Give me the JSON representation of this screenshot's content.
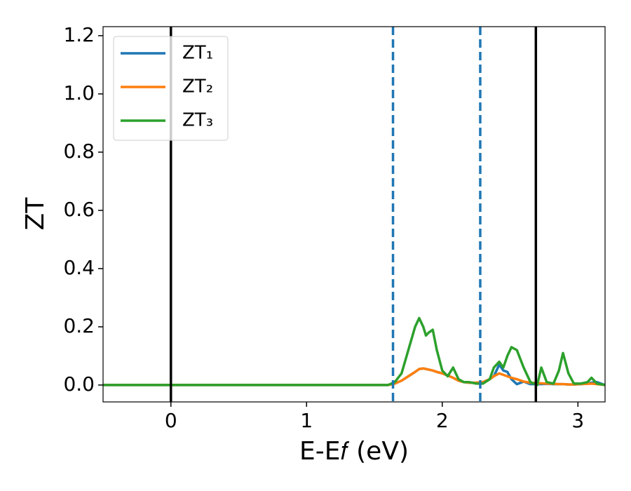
{
  "chart_data": {
    "type": "line",
    "xlabel": "E-E𝑓 (eV)",
    "ylabel": "ZT",
    "xlim": [
      -0.5,
      3.2
    ],
    "ylim": [
      -0.058,
      1.231
    ],
    "xticks": [
      0,
      1,
      2,
      3
    ],
    "yticks": [
      {
        "value": 0,
        "label": "0.0"
      },
      0.2,
      0.4,
      0.6,
      0.8,
      {
        "value": 1,
        "label": "1.0"
      },
      1.2
    ],
    "legend": "upper left",
    "vlines": [
      {
        "x": 0,
        "color": "#000000",
        "dashed": false
      },
      {
        "x": 1.637,
        "color": "#1f77b4",
        "dashed": true
      },
      {
        "x": 2.28,
        "color": "#1f77b4",
        "dashed": true
      },
      {
        "x": 2.69,
        "color": "#000000",
        "dashed": false
      }
    ],
    "x": [
      -0.5,
      1.6,
      1.65,
      1.7,
      1.75,
      1.8,
      1.83,
      1.86,
      1.88,
      1.9,
      1.93,
      1.96,
      2.0,
      2.04,
      2.08,
      2.12,
      2.16,
      2.2,
      2.25,
      2.3,
      2.35,
      2.38,
      2.42,
      2.45,
      2.48,
      2.51,
      2.55,
      2.6,
      2.65,
      2.7,
      2.73,
      2.77,
      2.82,
      2.86,
      2.89,
      2.93,
      2.97,
      3.02,
      3.07,
      3.1,
      3.14,
      3.2
    ],
    "series": [
      {
        "name": "ZT₁",
        "color": "#1f77b4",
        "values": [
          0,
          0,
          0.005,
          0.015,
          0.03,
          0.045,
          0.055,
          0.057,
          0.055,
          0.053,
          0.05,
          0.045,
          0.04,
          0.033,
          0.025,
          0.015,
          0.01,
          0.008,
          0.008,
          0.01,
          0.02,
          0.03,
          0.07,
          0.05,
          0.045,
          0.02,
          0.003,
          0.012,
          0.003,
          0.003,
          0.003,
          0.004,
          0.003,
          0.003,
          0.003,
          0.002,
          0.002,
          0.003,
          0.005,
          0.008,
          0.01,
          0
        ]
      },
      {
        "name": "ZT₂",
        "color": "#ff7f0e",
        "values": [
          0,
          0,
          0.005,
          0.015,
          0.03,
          0.045,
          0.055,
          0.057,
          0.055,
          0.053,
          0.05,
          0.045,
          0.04,
          0.033,
          0.025,
          0.015,
          0.01,
          0.008,
          0.008,
          0.01,
          0.02,
          0.03,
          0.04,
          0.035,
          0.03,
          0.025,
          0.02,
          0.012,
          0.008,
          0.006,
          0.006,
          0.005,
          0.004,
          0.003,
          0.003,
          0.002,
          0.002,
          0.003,
          0.004,
          0.005,
          0.003,
          0
        ]
      },
      {
        "name": "ZT₃",
        "color": "#2ca02c",
        "values": [
          0,
          0,
          0.01,
          0.04,
          0.12,
          0.2,
          0.23,
          0.2,
          0.17,
          0.18,
          0.19,
          0.12,
          0.05,
          0.03,
          0.06,
          0.02,
          0.01,
          0.01,
          0.005,
          0.005,
          0.02,
          0.06,
          0.08,
          0.06,
          0.1,
          0.13,
          0.12,
          0.06,
          0.01,
          0,
          0.06,
          0.01,
          0.005,
          0.05,
          0.11,
          0.04,
          0.005,
          0.005,
          0.01,
          0.025,
          0.005,
          0
        ]
      }
    ]
  }
}
